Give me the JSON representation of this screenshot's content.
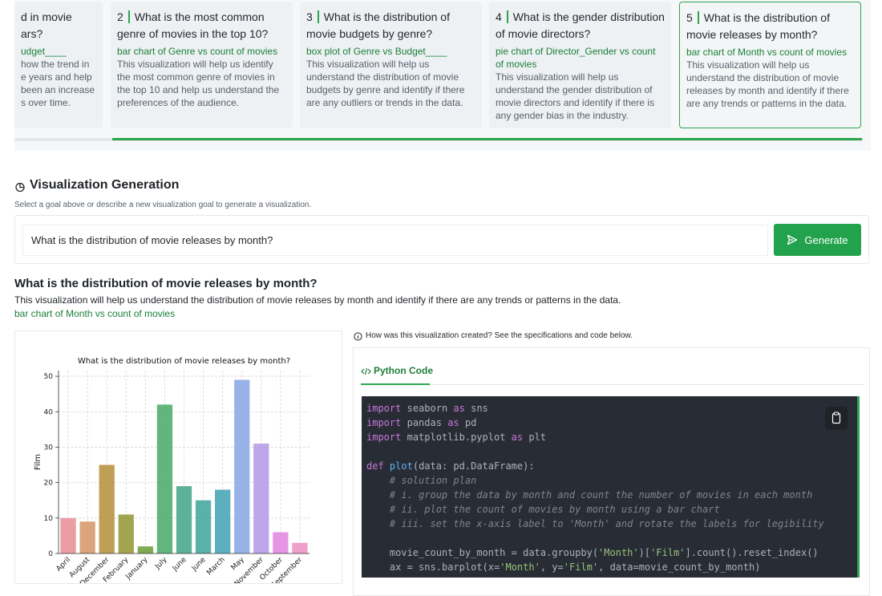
{
  "goals": [
    {
      "question": "d in movie\nars?",
      "visualization": "udget____",
      "rationale": "how the trend in\ne years and help\nbeen an increase\ns over time."
    },
    {
      "number": 2,
      "question": "What is the most common genre of movies in the top 10?",
      "visualization": "bar chart of Genre vs count of movies",
      "rationale": "This visualization will help us identify the most common genre of movies in the top 10 and help us understand the preferences of the audience."
    },
    {
      "number": 3,
      "question": "What is the distribution of movie budgets by genre?",
      "visualization": "box plot of Genre vs Budget____",
      "rationale": "This visualization will help us understand the distribution of movie budgets by genre and identify if there are any outliers or trends in the data."
    },
    {
      "number": 4,
      "question": "What is the gender distribution of movie directors?",
      "visualization": "pie chart of Director_Gender vs count of movies",
      "rationale": "This visualization will help us understand the gender distribution of movie directors and identify if there is any gender bias in the industry."
    },
    {
      "number": 5,
      "question": "What is the distribution of movie releases by month?",
      "visualization": "bar chart of Month vs count of movies",
      "rationale": "This visualization will help us understand the distribution of movie releases by month and identify if there are any trends or patterns in the data."
    }
  ],
  "generation": {
    "title": "Visualization Generation",
    "subtitle": "Select a goal above or describe a new visualization goal to generate a visualization.",
    "input": "What is the distribution of movie releases by month?",
    "button": "Generate"
  },
  "result": {
    "title": "What is the distribution of movie releases by month?",
    "rationale": "This visualization will help us understand the distribution of movie releases by month and identify if there are any trends or patterns in the data.",
    "visualization": "bar chart of Month vs count of movies",
    "info": "How was this visualization created? See the specifications and code below.",
    "tab": "Python Code",
    "code": "import seaborn as sns\nimport pandas as pd\nimport matplotlib.pyplot as plt\n\ndef plot(data: pd.DataFrame):\n    # solution plan\n    # i. group the data by month and count the number of movies in each month\n    # ii. plot the count of movies by month using a bar chart\n    # iii. set the x-axis label to 'Month' and rotate the labels for legibility\n\n    movie_count_by_month = data.groupby('Month')['Film'].count().reset_index()\n    ax = sns.barplot(x='Month', y='Film', data=movie_count_by_month)"
  },
  "chart_data": {
    "type": "bar",
    "title": "What is the distribution of movie releases by month?",
    "y_label": "Film",
    "categories": [
      "April",
      "August",
      "December",
      "February",
      "January",
      "July",
      "June",
      "June",
      "March",
      "May",
      "November",
      "October",
      "September"
    ],
    "values": [
      10,
      9,
      25,
      11,
      2,
      42,
      19,
      15,
      18,
      49,
      31,
      6,
      3
    ],
    "colors": [
      "#e8939a",
      "#d79a6c",
      "#b89342",
      "#979b3c",
      "#72a23f",
      "#4fae6f",
      "#4aa88b",
      "#48a8a0",
      "#4aa7b6",
      "#8eaae6",
      "#b89ce8",
      "#e48ae2",
      "#ee94c4"
    ],
    "ylim": [
      0,
      51.6
    ],
    "yticks": [
      0,
      10,
      20,
      30,
      40,
      50
    ],
    "grid": true
  }
}
